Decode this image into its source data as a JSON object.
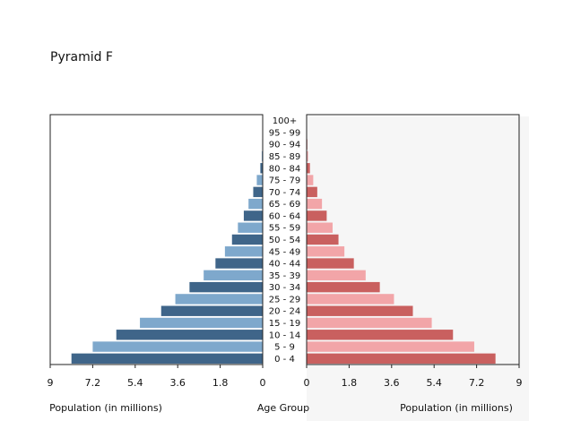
{
  "page": {
    "title": "Pyramid F"
  },
  "chart_data": {
    "type": "bar",
    "orientation": "horizontal-pyramid",
    "categories": [
      "0 - 4",
      "5 - 9",
      "10 - 14",
      "15 - 19",
      "20 - 24",
      "25 - 29",
      "30 - 34",
      "35 - 39",
      "40 - 44",
      "45 - 49",
      "50 - 54",
      "55 - 59",
      "60 - 64",
      "65 - 69",
      "70 - 74",
      "75 - 79",
      "80 - 84",
      "85 - 89",
      "90 - 94",
      "95 - 99",
      "100+"
    ],
    "series": [
      {
        "side": "left",
        "values": [
          8.1,
          7.2,
          6.2,
          5.2,
          4.3,
          3.7,
          3.1,
          2.5,
          2.0,
          1.6,
          1.3,
          1.05,
          0.8,
          0.6,
          0.4,
          0.25,
          0.1,
          0.04,
          0.02,
          0.01,
          0.0
        ],
        "colors": [
          "#3f6589",
          "#7ea8cc"
        ]
      },
      {
        "side": "right",
        "values": [
          8.0,
          7.1,
          6.2,
          5.3,
          4.5,
          3.7,
          3.1,
          2.5,
          2.0,
          1.6,
          1.35,
          1.1,
          0.85,
          0.65,
          0.45,
          0.28,
          0.14,
          0.06,
          0.03,
          0.01,
          0.0
        ],
        "colors": [
          "#c9605f",
          "#f2a5a8"
        ]
      }
    ],
    "xlabel_left": "Population (in millions)",
    "xlabel_center": "Age Group",
    "xlabel_right": "Population (in millions)",
    "xlim": [
      0,
      9
    ],
    "left_ticks": [
      "9",
      "7.2",
      "5.4",
      "3.6",
      "1.8",
      "0"
    ],
    "right_ticks": [
      "0",
      "1.8",
      "3.6",
      "5.4",
      "7.2",
      "9"
    ],
    "tick_values": [
      0,
      1.8,
      3.6,
      5.4,
      7.2,
      9
    ],
    "grid": false,
    "legend": "none"
  }
}
